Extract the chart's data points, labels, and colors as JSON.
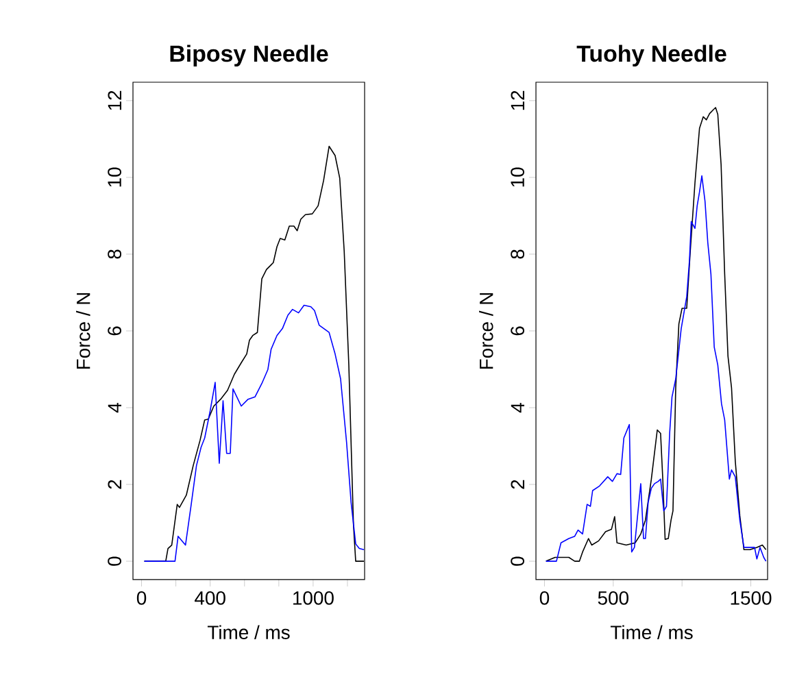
{
  "chart_data": [
    {
      "type": "line",
      "title": "Biposy Needle",
      "xlabel": "Time / ms",
      "ylabel": "Force / N",
      "xlim": [
        -50,
        1300
      ],
      "ylim": [
        -0.48,
        12.48
      ],
      "xticks": [
        0,
        {
          "value": 200,
          "label": null
        },
        400,
        {
          "value": 600,
          "label": null
        },
        {
          "value": 800,
          "label": null
        },
        1000,
        {
          "value": 1200,
          "label": null
        }
      ],
      "yticks": [
        0,
        2,
        4,
        6,
        8,
        10,
        12
      ],
      "series": [
        {
          "color": "#000000",
          "x": [
            16,
            141,
            154,
            176,
            208,
            221,
            261,
            301,
            341,
            368,
            389,
            421,
            461,
            501,
            541,
            581,
            613,
            629,
            648,
            675,
            701,
            728,
            755,
            768,
            789,
            808,
            835,
            861,
            888,
            907,
            928,
            955,
            995,
            1029,
            1061,
            1093,
            1128,
            1155,
            1181,
            1208,
            1235,
            1248,
            1296
          ],
          "values": [
            0,
            0,
            0.33,
            0.42,
            1.48,
            1.4,
            1.72,
            2.49,
            3.15,
            3.68,
            3.7,
            4.04,
            4.22,
            4.45,
            4.87,
            5.17,
            5.4,
            5.76,
            5.88,
            5.96,
            7.36,
            7.6,
            7.72,
            7.78,
            8.19,
            8.41,
            8.37,
            8.73,
            8.73,
            8.61,
            8.91,
            9.03,
            9.05,
            9.26,
            9.92,
            10.81,
            10.57,
            9.98,
            8.08,
            5.11,
            0.95,
            0,
            0
          ]
        },
        {
          "color": "#0000ff",
          "x": [
            16,
            195,
            213,
            256,
            288,
            320,
            347,
            368,
            400,
            429,
            453,
            475,
            496,
            517,
            533,
            581,
            621,
            661,
            701,
            736,
            755,
            789,
            821,
            853,
            880,
            915,
            947,
            987,
            1008,
            1035,
            1093,
            1128,
            1160,
            1195,
            1221,
            1248,
            1269,
            1296
          ],
          "values": [
            0,
            0,
            0.65,
            0.42,
            1.43,
            2.49,
            2.97,
            3.21,
            3.92,
            4.66,
            2.55,
            4.18,
            2.81,
            2.81,
            4.49,
            4.04,
            4.22,
            4.28,
            4.63,
            4.99,
            5.52,
            5.88,
            6.06,
            6.41,
            6.56,
            6.47,
            6.67,
            6.63,
            6.53,
            6.15,
            5.96,
            5.4,
            4.75,
            3.09,
            1.54,
            0.45,
            0.33,
            0.3
          ]
        }
      ]
    },
    {
      "type": "line",
      "title": "Tuohy Needle",
      "xlabel": "Time / ms",
      "ylabel": "Force / N",
      "xlim": [
        -62,
        1622
      ],
      "ylim": [
        -0.48,
        12.48
      ],
      "xticks": [
        0,
        500,
        {
          "value": 1000,
          "label": null
        },
        1500
      ],
      "yticks": [
        0,
        2,
        4,
        6,
        8,
        10,
        12
      ],
      "series": [
        {
          "color": "#000000",
          "x": [
            11,
            77,
            177,
            220,
            254,
            277,
            320,
            344,
            394,
            444,
            487,
            510,
            527,
            594,
            660,
            700,
            734,
            777,
            820,
            844,
            860,
            877,
            900,
            920,
            934,
            954,
            977,
            1000,
            1034,
            1060,
            1094,
            1127,
            1154,
            1177,
            1200,
            1227,
            1244,
            1260,
            1284,
            1310,
            1334,
            1360,
            1387,
            1420,
            1450,
            1494,
            1544,
            1584,
            1610
          ],
          "values": [
            0,
            0.1,
            0.1,
            0,
            0,
            0.24,
            0.59,
            0.42,
            0.53,
            0.77,
            0.83,
            1.16,
            0.48,
            0.42,
            0.48,
            0.71,
            1.07,
            2.14,
            3.42,
            3.33,
            2.14,
            0.57,
            0.59,
            1.07,
            1.31,
            4.51,
            6.18,
            6.59,
            6.59,
            8.08,
            9.86,
            11.28,
            11.58,
            11.5,
            11.66,
            11.76,
            11.82,
            11.64,
            10.33,
            7.48,
            5.34,
            4.51,
            2.61,
            1.19,
            0.3,
            0.3,
            0.36,
            0.42,
            0.3
          ]
        },
        {
          "color": "#0000ff",
          "x": [
            11,
            87,
            120,
            177,
            220,
            244,
            277,
            310,
            334,
            350,
            400,
            460,
            494,
            527,
            554,
            577,
            617,
            634,
            654,
            700,
            720,
            734,
            754,
            777,
            800,
            827,
            844,
            867,
            887,
            910,
            927,
            954,
            994,
            1034,
            1054,
            1067,
            1094,
            1110,
            1127,
            1144,
            1167,
            1187,
            1210,
            1234,
            1260,
            1287,
            1310,
            1344,
            1360,
            1387,
            1420,
            1450,
            1494,
            1527,
            1544,
            1567,
            1594,
            1610
          ],
          "values": [
            0,
            0,
            0.48,
            0.59,
            0.65,
            0.81,
            0.71,
            1.48,
            1.43,
            1.84,
            1.96,
            2.2,
            2.08,
            2.28,
            2.26,
            3.21,
            3.56,
            0.24,
            0.36,
            2.02,
            0.59,
            0.59,
            1.54,
            1.9,
            2.02,
            2.08,
            2.14,
            1.31,
            1.43,
            3.33,
            4.28,
            4.75,
            6.06,
            6.89,
            7.84,
            8.85,
            8.67,
            9.26,
            9.62,
            10.04,
            9.38,
            8.31,
            7.48,
            5.58,
            5.11,
            4.1,
            3.68,
            2.14,
            2.38,
            2.2,
            1.07,
            0.36,
            0.36,
            0.36,
            0.06,
            0.36,
            0.1,
            0
          ]
        }
      ]
    }
  ]
}
